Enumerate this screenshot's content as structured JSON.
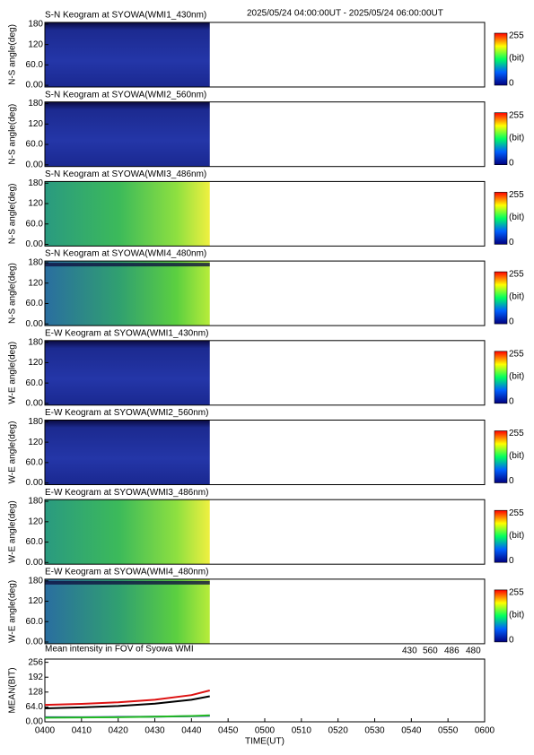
{
  "header": {
    "time_range": "2025/05/24 04:00:00UT - 2025/05/24 06:00:00UT"
  },
  "panels": [
    {
      "title": "S-N Keogram at SYOWA(WMI1_430nm)",
      "ylabel": "N-S angle(deg)",
      "ylim": [
        -5,
        185
      ],
      "yticks": [
        {
          "value": 0,
          "label": "0.00"
        },
        {
          "value": 60,
          "label": "60.0"
        },
        120,
        180
      ],
      "colorbar": [
        "255",
        "(bit)",
        "0"
      ]
    },
    {
      "title": "S-N Keogram at SYOWA(WMI2_560nm)",
      "ylabel": "N-S angle(deg)",
      "ylim": [
        -5,
        185
      ],
      "yticks": [
        {
          "value": 0,
          "label": "0.00"
        },
        {
          "value": 60,
          "label": "60.0"
        },
        120,
        180
      ],
      "colorbar": [
        "255",
        "(bit)",
        "0"
      ]
    },
    {
      "title": "S-N Keogram at SYOWA(WMI3_486nm)",
      "ylabel": "N-S angle(deg)",
      "ylim": [
        -5,
        185
      ],
      "yticks": [
        {
          "value": 0,
          "label": "0.00"
        },
        {
          "value": 60,
          "label": "60.0"
        },
        120,
        180
      ],
      "colorbar": [
        "255",
        "(bit)",
        "0"
      ]
    },
    {
      "title": "S-N Keogram at SYOWA(WMI4_480nm)",
      "ylabel": "N-S angle(deg)",
      "ylim": [
        -5,
        185
      ],
      "yticks": [
        {
          "value": 0,
          "label": "0.00"
        },
        {
          "value": 60,
          "label": "60.0"
        },
        120,
        180
      ],
      "colorbar": [
        "255",
        "(bit)",
        "0"
      ]
    },
    {
      "title": "E-W Keogram at SYOWA(WMI1_430nm)",
      "ylabel": "W-E angle(deg)",
      "ylim": [
        -5,
        185
      ],
      "yticks": [
        {
          "value": 0,
          "label": "0.00"
        },
        {
          "value": 60,
          "label": "60.0"
        },
        120,
        180
      ],
      "colorbar": [
        "255",
        "(bit)",
        "0"
      ]
    },
    {
      "title": "E-W Keogram at SYOWA(WMI2_560nm)",
      "ylabel": "W-E angle(deg)",
      "ylim": [
        -5,
        185
      ],
      "yticks": [
        {
          "value": 0,
          "label": "0.00"
        },
        {
          "value": 60,
          "label": "60.0"
        },
        120,
        180
      ],
      "colorbar": [
        "255",
        "(bit)",
        "0"
      ]
    },
    {
      "title": "E-W Keogram at SYOWA(WMI3_486nm)",
      "ylabel": "W-E angle(deg)",
      "ylim": [
        -5,
        185
      ],
      "yticks": [
        {
          "value": 0,
          "label": "0.00"
        },
        {
          "value": 60,
          "label": "60.0"
        },
        120,
        180
      ],
      "colorbar": [
        "255",
        "(bit)",
        "0"
      ]
    },
    {
      "title": "E-W Keogram at SYOWA(WMI4_480nm)",
      "ylabel": "W-E angle(deg)",
      "ylim": [
        -5,
        185
      ],
      "yticks": [
        {
          "value": 0,
          "label": "0.00"
        },
        {
          "value": 60,
          "label": "60.0"
        },
        120,
        180
      ],
      "colorbar": [
        "255",
        "(bit)",
        "0"
      ]
    }
  ],
  "chart_data": {
    "type": "line",
    "title": "Mean intensity in FOV of Syowa WMI",
    "xlabel": "TIME(UT)",
    "ylabel": "MEAN(BIT)",
    "x": [
      "0400",
      "0410",
      "0420",
      "0430",
      "0440",
      "0445"
    ],
    "series": [
      {
        "name": "430",
        "color": "#1a1aaa",
        "values": [
          20,
          20,
          21,
          22,
          24,
          26
        ]
      },
      {
        "name": "560",
        "color": "#22bb22",
        "values": [
          18,
          19,
          20,
          22,
          25,
          28
        ]
      },
      {
        "name": "486",
        "color": "#dd1111",
        "values": [
          73,
          77,
          84,
          95,
          115,
          135
        ]
      },
      {
        "name": "480",
        "color": "#000000",
        "values": [
          58,
          62,
          68,
          78,
          95,
          110
        ]
      }
    ],
    "xlim": [
      "0400",
      "0600"
    ],
    "xticks": [
      "0400",
      "0410",
      "0420",
      "0430",
      "0440",
      "0450",
      "0500",
      "0510",
      "0520",
      "0530",
      "0540",
      "0550",
      "0600"
    ],
    "ylim": [
      0,
      270
    ],
    "yticks": [
      {
        "value": 0,
        "label": "0.00"
      },
      {
        "value": 64,
        "label": "64.0"
      },
      128,
      192,
      256
    ]
  }
}
